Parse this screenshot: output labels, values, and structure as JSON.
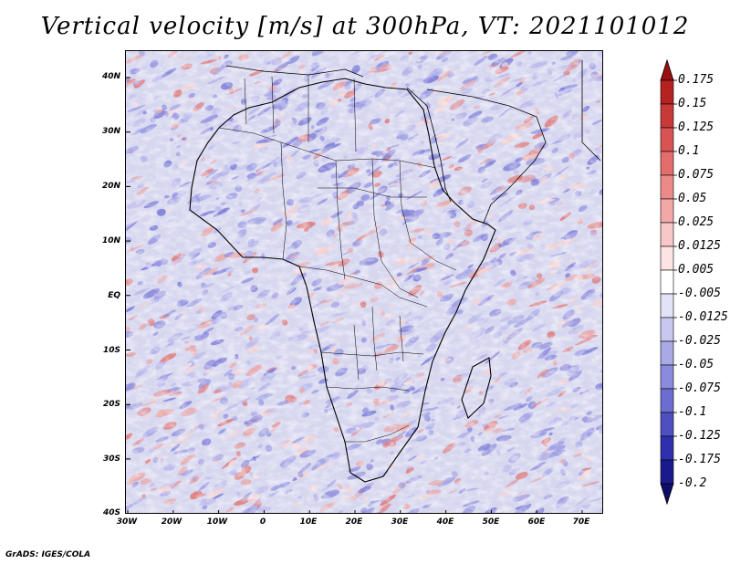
{
  "title": "Vertical velocity [m/s] at 300hPa, VT: 2021101012",
  "footer": "GrADS: IGES/COLA",
  "lat_ticks": [
    "40N",
    "30N",
    "20N",
    "10N",
    "EQ",
    "10S",
    "20S",
    "30S",
    "40S"
  ],
  "lon_ticks": [
    "30W",
    "20W",
    "10W",
    "0",
    "10E",
    "20E",
    "30E",
    "40E",
    "50E",
    "60E",
    "70E"
  ],
  "colorbar": {
    "levels": [
      "0.175",
      "0.15",
      "0.125",
      "0.1",
      "0.075",
      "0.05",
      "0.025",
      "0.0125",
      "0.005",
      "-0.005",
      "-0.0125",
      "-0.025",
      "-0.05",
      "-0.075",
      "-0.1",
      "-0.125",
      "-0.175",
      "-0.2"
    ],
    "colors": [
      "#9a0f0f",
      "#b52222",
      "#c83a3a",
      "#d85454",
      "#e36d6d",
      "#ec8a8a",
      "#f3a8a8",
      "#f8c7c7",
      "#fce4e4",
      "#ffffff",
      "#e3e3f8",
      "#c7c7f0",
      "#a9a9e6",
      "#8b8bdc",
      "#6d6dd0",
      "#4f4fc2",
      "#3030ae",
      "#1a1a8c",
      "#0e0e6a"
    ]
  },
  "map": {
    "field_colors": [
      "#d6d6ef",
      "#b9b9ec",
      "#9c9ce4",
      "#8080da",
      "#f4d3d3",
      "#eaa6a6",
      "#e07f7f"
    ]
  }
}
